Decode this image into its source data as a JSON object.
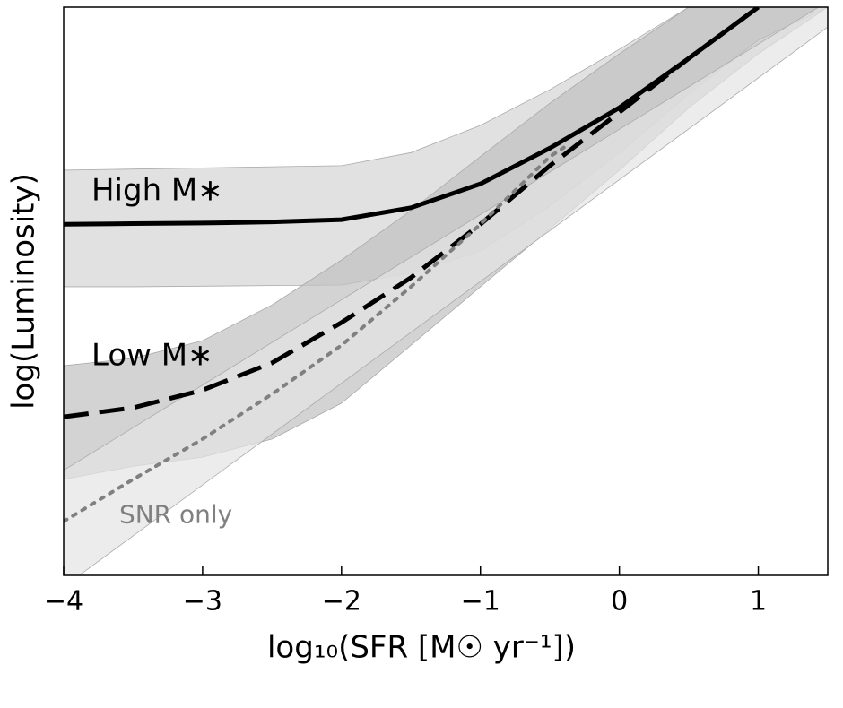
{
  "chart_data": {
    "type": "line",
    "xlabel": "log₁₀(SFR [M☉ yr⁻¹])",
    "ylabel": "log(Luminosity)",
    "xlim": [
      -4,
      1.5
    ],
    "ylim": [
      0,
      10
    ],
    "xticks": [
      {
        "value": -4,
        "label": "−4"
      },
      {
        "value": -3,
        "label": "−3"
      },
      {
        "value": -2,
        "label": "−2"
      },
      {
        "value": -1,
        "label": "−1"
      },
      0,
      1
    ],
    "bands": [
      {
        "color": "#d4d4d4",
        "x": [
          -4,
          -3.5,
          -3,
          -2.5,
          -2,
          -1.5,
          -1,
          -0.5,
          0,
          0.5,
          1,
          1.5
        ],
        "upper": [
          7.13,
          7.15,
          7.17,
          7.19,
          7.21,
          7.44,
          7.92,
          8.55,
          9.26,
          10,
          10.8,
          11.5
        ],
        "lower": [
          5.08,
          5.08,
          5.09,
          5.1,
          5.11,
          5.32,
          5.71,
          6.5,
          7.44,
          8.47,
          9.42,
          10
        ]
      },
      {
        "color": "#c0c0c0",
        "x": [
          -4,
          -3.5,
          -3,
          -2.5,
          -2,
          -1.5,
          -1,
          -0.5,
          0,
          0.5,
          1,
          1.5
        ],
        "upper": [
          3.69,
          3.82,
          4.13,
          4.76,
          5.55,
          6.42,
          7.37,
          8.31,
          9.18,
          10,
          10.9,
          11.8
        ],
        "lower": [
          1.69,
          1.92,
          2.08,
          2.4,
          3.03,
          4.05,
          5.08,
          6.1,
          7.13,
          8.23,
          9.18,
          10
        ]
      },
      {
        "color": "#e4e4e4",
        "x": [
          -4,
          1.5
        ],
        "upper": [
          1.85,
          10.1
        ],
        "lower": [
          -0.2,
          9.65
        ]
      }
    ],
    "series": [
      {
        "name": "High M∗",
        "color": "#000000",
        "style": "solid",
        "x": [
          -4,
          -3.5,
          -3,
          -2.5,
          -2,
          -1.5,
          -1,
          -0.5,
          0,
          0.5,
          1
        ],
        "values": [
          6.18,
          6.19,
          6.2,
          6.22,
          6.26,
          6.47,
          6.89,
          7.52,
          8.23,
          9.1,
          10
        ]
      },
      {
        "name": "Low M∗",
        "color": "#000000",
        "style": "dashed",
        "x": [
          -4,
          -3.5,
          -3,
          -2.5,
          -2,
          -1.5,
          -1,
          -0.5,
          0,
          0.5,
          1
        ],
        "values": [
          2.79,
          2.95,
          3.26,
          3.74,
          4.45,
          5.24,
          6.18,
          7.21,
          8.15,
          9.1,
          10
        ]
      },
      {
        "name": "SNR only",
        "color": "#808080",
        "style": "dotted",
        "x": [
          -4,
          -3.5,
          -3,
          -2.5,
          -2,
          -1.5,
          -1,
          -0.5,
          -0.4
        ],
        "values": [
          0.95,
          1.69,
          2.4,
          3.19,
          4.05,
          5.08,
          6.18,
          7.37,
          7.53
        ]
      }
    ],
    "annotations": [
      {
        "text": "High M∗",
        "x": -3.8,
        "y": 6.75,
        "color": "#000000"
      },
      {
        "text": "Low M∗",
        "x": -3.8,
        "y": 3.85,
        "color": "#000000"
      },
      {
        "text": "SNR only",
        "x": -3.6,
        "y": 1.05,
        "color": "#808080"
      }
    ]
  }
}
